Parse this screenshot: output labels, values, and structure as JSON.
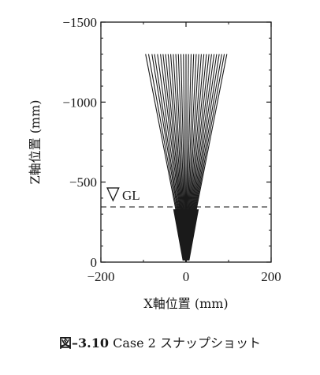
{
  "chart_data": {
    "type": "line",
    "title": "",
    "xlabel": "X軸位置 (mm)",
    "ylabel": "Z軸位置 (mm)",
    "xlim": [
      -200,
      200
    ],
    "ylim": [
      0,
      -1500
    ],
    "x_ticks": [
      -200,
      0,
      200
    ],
    "x_tick_labels": [
      "−200",
      "0",
      "200"
    ],
    "y_ticks": [
      0,
      -500,
      -1000,
      -1500
    ],
    "y_tick_labels": [
      "0",
      "−500",
      "−1000",
      "−1500"
    ],
    "grid": false,
    "apex": [
      0,
      0
    ],
    "line_top_z": -1300,
    "line_top_x": [
      -95,
      -88,
      -80,
      -74,
      -67,
      -60,
      -54,
      -48,
      -42,
      -36,
      -30,
      -24,
      -18,
      -12,
      -6,
      0,
      6,
      12,
      18,
      24,
      30,
      36,
      42,
      48,
      54,
      60,
      66,
      72,
      78,
      84,
      90,
      96
    ],
    "ground_level": {
      "z": -345,
      "label": "GL",
      "style": "dashed"
    }
  },
  "caption": {
    "figure_number": "図–3.10",
    "text": "Case 2 スナップショット"
  }
}
